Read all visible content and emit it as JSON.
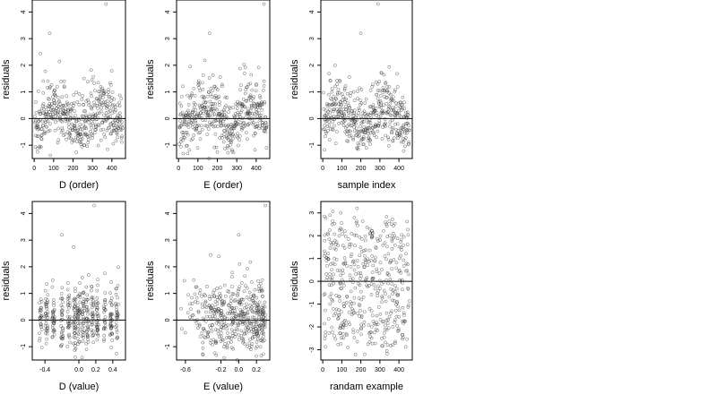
{
  "chart_data": [
    {
      "type": "scatter",
      "xlabel": "D (order)",
      "ylabel": "residuals",
      "xlim": [
        -10,
        470
      ],
      "ylim": [
        -1.5,
        4.45
      ],
      "x_ticks": [
        0,
        100,
        200,
        300,
        400
      ],
      "y_ticks": [
        -1,
        0,
        1,
        2,
        3,
        4
      ],
      "reference_line_y": 0,
      "point_count": 460,
      "outliers": [
        [
          370,
          4.3
        ],
        [
          80,
          3.2
        ]
      ],
      "pattern": "residual clusters by order index",
      "seed": 11
    },
    {
      "type": "scatter",
      "xlabel": "E (order)",
      "ylabel": "residuals",
      "xlim": [
        -10,
        470
      ],
      "ylim": [
        -1.5,
        4.45
      ],
      "x_ticks": [
        0,
        100,
        200,
        300,
        400
      ],
      "y_ticks": [
        -1,
        0,
        1,
        2,
        3,
        4
      ],
      "reference_line_y": 0,
      "point_count": 460,
      "outliers": [
        [
          440,
          4.3
        ],
        [
          160,
          3.2
        ]
      ],
      "pattern": "residual clusters by order index",
      "seed": 23
    },
    {
      "type": "scatter",
      "xlabel": "sample index",
      "ylabel": "residuals",
      "xlim": [
        -10,
        470
      ],
      "ylim": [
        -1.5,
        4.45
      ],
      "x_ticks": [
        0,
        100,
        200,
        300,
        400
      ],
      "y_ticks": [
        -1,
        0,
        1,
        2,
        3,
        4
      ],
      "reference_line_y": 0,
      "point_count": 460,
      "outliers": [
        [
          290,
          4.3
        ],
        [
          200,
          3.2
        ]
      ],
      "pattern": "residual clusters by sample index",
      "seed": 37
    },
    {
      "type": "scatter",
      "xlabel": "D (value)",
      "ylabel": "residuals",
      "xlim": [
        -0.55,
        0.55
      ],
      "ylim": [
        -1.5,
        4.45
      ],
      "x_ticks": [
        -0.4,
        0.0,
        0.2,
        0.4
      ],
      "x_tick_labels": [
        "-0.4",
        "0.0",
        "0.2",
        "0.4"
      ],
      "y_ticks": [
        -1,
        0,
        1,
        2,
        3,
        4
      ],
      "reference_line_y": 0,
      "point_count": 460,
      "outliers": [
        [
          0.18,
          4.3
        ],
        [
          -0.2,
          3.2
        ]
      ],
      "pattern": "vertical columns at discrete D values",
      "seed": 51
    },
    {
      "type": "scatter",
      "xlabel": "E (value)",
      "ylabel": "residuals",
      "xlim": [
        -0.7,
        0.35
      ],
      "ylim": [
        -1.5,
        4.45
      ],
      "x_ticks": [
        -0.6,
        -0.2,
        0.0,
        0.2
      ],
      "x_tick_labels": [
        "-0.6",
        "-0.2",
        "0.0",
        "0.2"
      ],
      "y_ticks": [
        -1,
        0,
        1,
        2,
        3,
        4
      ],
      "reference_line_y": 0,
      "point_count": 460,
      "outliers": [
        [
          0.3,
          4.3
        ],
        [
          0.0,
          3.2
        ]
      ],
      "pattern": "density increasing toward right edge",
      "seed": 67
    },
    {
      "type": "scatter",
      "xlabel": "randam example",
      "ylabel": "residuals",
      "xlim": [
        -10,
        470
      ],
      "ylim": [
        -3.45,
        3.5
      ],
      "x_ticks": [
        0,
        100,
        200,
        300,
        400
      ],
      "y_ticks": [
        -3,
        -2,
        -1,
        0,
        1,
        2,
        3
      ],
      "reference_line_y": 0,
      "point_count": 460,
      "outliers": [
        [
          180,
          3.2
        ],
        [
          220,
          -3.2
        ]
      ],
      "pattern": "uniform random noise",
      "seed": 89
    }
  ]
}
